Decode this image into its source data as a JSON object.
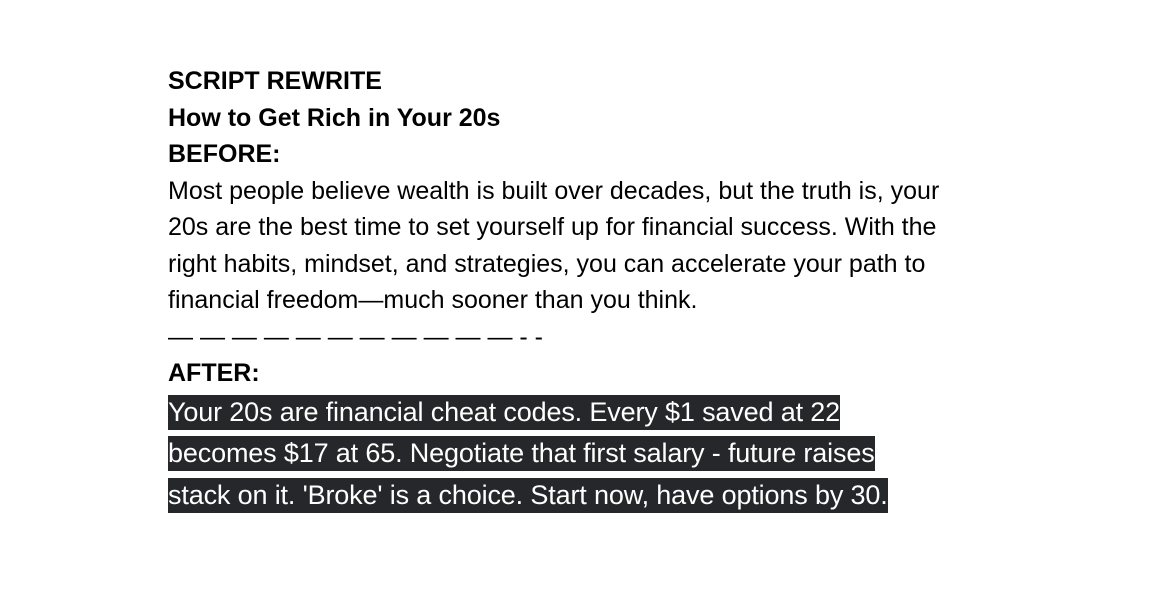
{
  "document": {
    "title": "SCRIPT REWRITE",
    "subtitle": "How to Get Rich in Your 20s",
    "before_label": "BEFORE:",
    "before_text": "Most people believe wealth is built over decades, but the truth is, your 20s are the best time to set yourself up for financial success. With the right habits, mindset, and strategies, you can accelerate your path to financial freedom—much sooner than you think.",
    "divider": "— — — — — — — — — — — - -",
    "after_label": "AFTER:",
    "after_text": "Your 20s are financial cheat codes. Every $1 saved at 22 becomes $17 at 65. Negotiate that first salary - future raises stack on it. 'Broke' is a choice. Start now, have options by 30.",
    "colors": {
      "selection_background": "#26272b",
      "selection_text": "#ffffff",
      "text": "#000000"
    }
  }
}
